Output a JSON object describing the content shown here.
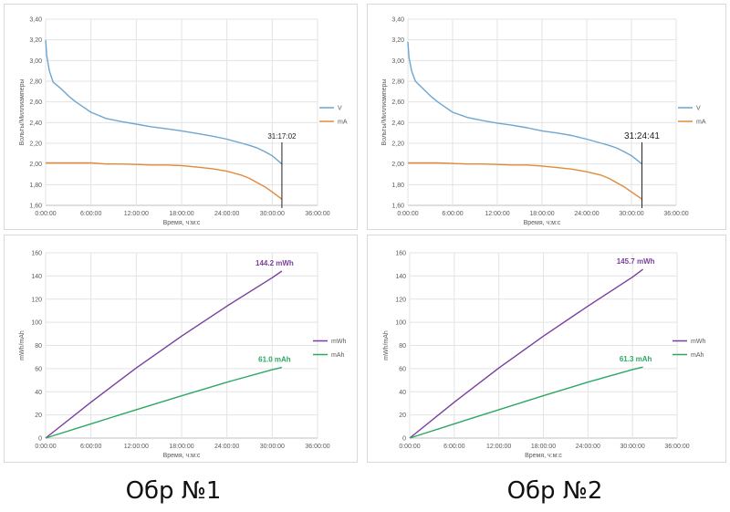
{
  "captions": [
    "Обр №1",
    "Обр №2"
  ],
  "chart_data": [
    {
      "type": "line",
      "panel": "top-left",
      "xlabel": "Время, ч:м:с",
      "ylabel": "Вольты/Миллиамперы",
      "xlim": [
        0,
        36
      ],
      "ylim": [
        1.6,
        3.4
      ],
      "xticks": [
        "0:00:00",
        "6:00:00",
        "12:00:00",
        "18:00:00",
        "24:00:00",
        "30:00:00",
        "36:00:00"
      ],
      "yticks": [
        "1,60",
        "1,80",
        "2,00",
        "2,20",
        "2,40",
        "2,60",
        "2,80",
        "3,00",
        "3,20",
        "3,40"
      ],
      "grid": true,
      "legend": "right",
      "series": [
        {
          "name": "V",
          "color": "#6ea6cf",
          "x": [
            0,
            0.15,
            0.5,
            1,
            2,
            3,
            4,
            5,
            6,
            8,
            10,
            12,
            14,
            16,
            18,
            20,
            22,
            24,
            26,
            27,
            28,
            29,
            30,
            31.28
          ],
          "y": [
            3.2,
            3.05,
            2.9,
            2.79,
            2.73,
            2.66,
            2.6,
            2.55,
            2.5,
            2.44,
            2.41,
            2.385,
            2.36,
            2.34,
            2.32,
            2.295,
            2.27,
            2.24,
            2.2,
            2.18,
            2.155,
            2.12,
            2.08,
            2.0
          ]
        },
        {
          "name": "mA",
          "color": "#e08a3a",
          "x": [
            0,
            2,
            4,
            6,
            8,
            10,
            12,
            14,
            16,
            18,
            20,
            22,
            24,
            26,
            27,
            28,
            29,
            30,
            31.28
          ],
          "y": [
            2.01,
            2.01,
            2.01,
            2.01,
            2.0,
            2.0,
            1.995,
            1.99,
            1.99,
            1.985,
            1.97,
            1.955,
            1.93,
            1.89,
            1.86,
            1.82,
            1.78,
            1.73,
            1.66
          ]
        }
      ],
      "annotation": {
        "text": "31:17:02",
        "x": 31.28
      }
    },
    {
      "type": "line",
      "panel": "top-right",
      "xlabel": "Время, ч:м:с",
      "ylabel": "Вольты/Миллиамперы",
      "xlim": [
        0,
        36
      ],
      "ylim": [
        1.6,
        3.4
      ],
      "xticks": [
        "0:00:00",
        "6:00:00",
        "12:00:00",
        "18:00:00",
        "24:00:00",
        "30:00:00",
        "36:00:00"
      ],
      "yticks": [
        "1,60",
        "1,80",
        "2,00",
        "2,20",
        "2,40",
        "2,60",
        "2,80",
        "3,00",
        "3,20",
        "3,40"
      ],
      "grid": true,
      "legend": "right",
      "series": [
        {
          "name": "V",
          "color": "#6ea6cf",
          "x": [
            0,
            0.15,
            0.5,
            1,
            2,
            3,
            4,
            5,
            6,
            8,
            10,
            12,
            14,
            16,
            18,
            20,
            22,
            24,
            26,
            27,
            28,
            29,
            30,
            31.41
          ],
          "y": [
            3.18,
            3.03,
            2.9,
            2.8,
            2.73,
            2.66,
            2.6,
            2.55,
            2.5,
            2.45,
            2.42,
            2.395,
            2.375,
            2.35,
            2.32,
            2.3,
            2.275,
            2.24,
            2.2,
            2.18,
            2.155,
            2.12,
            2.08,
            2.0
          ]
        },
        {
          "name": "mA",
          "color": "#e08a3a",
          "x": [
            0,
            2,
            4,
            6,
            8,
            10,
            12,
            14,
            16,
            18,
            20,
            22,
            24,
            26,
            27,
            28,
            29,
            30,
            31.41
          ],
          "y": [
            2.01,
            2.01,
            2.01,
            2.005,
            2.0,
            2.0,
            1.995,
            1.99,
            1.99,
            1.98,
            1.965,
            1.95,
            1.925,
            1.89,
            1.86,
            1.82,
            1.78,
            1.73,
            1.66
          ]
        }
      ],
      "annotation": {
        "text": "31:24:41",
        "x": 31.41
      }
    },
    {
      "type": "line",
      "panel": "bottom-left",
      "xlabel": "Время, ч:м:с",
      "ylabel": "mWh/mAh",
      "xlim": [
        0,
        36
      ],
      "ylim": [
        0,
        160
      ],
      "xticks": [
        "0:00:00",
        "6:00:00",
        "12:00:00",
        "18:00:00",
        "24:00:00",
        "30:00:00",
        "36:00:00"
      ],
      "yticks": [
        "0",
        "20",
        "40",
        "60",
        "80",
        "100",
        "120",
        "140",
        "160"
      ],
      "grid": true,
      "legend": "right",
      "series": [
        {
          "name": "mWh",
          "color": "#7a3f9e",
          "x": [
            0,
            6,
            12,
            18,
            24,
            30,
            31.28
          ],
          "y": [
            0,
            31,
            60.5,
            88,
            114,
            138.5,
            144.2
          ],
          "label": "144.2 mWh"
        },
        {
          "name": "mAh",
          "color": "#2ca863",
          "x": [
            0,
            6,
            12,
            18,
            24,
            30,
            31.28
          ],
          "y": [
            0,
            12.3,
            24.5,
            36.5,
            48.2,
            59,
            61.0
          ],
          "label": "61.0 mAh"
        }
      ]
    },
    {
      "type": "line",
      "panel": "bottom-right",
      "xlabel": "Время, ч:м:с",
      "ylabel": "mWh/mAh",
      "xlim": [
        0,
        36
      ],
      "ylim": [
        0,
        160
      ],
      "xticks": [
        "0:00:00",
        "6:00:00",
        "12:00:00",
        "18:00:00",
        "24:00:00",
        "30:00:00",
        "36:00:00"
      ],
      "yticks": [
        "0",
        "20",
        "40",
        "60",
        "80",
        "100",
        "120",
        "140",
        "160"
      ],
      "grid": true,
      "legend": "right",
      "series": [
        {
          "name": "mWh",
          "color": "#7a3f9e",
          "x": [
            0,
            6,
            12,
            18,
            24,
            30,
            31.41
          ],
          "y": [
            0,
            31,
            60.5,
            88,
            114,
            139,
            145.7
          ],
          "label": "145.7 mWh"
        },
        {
          "name": "mAh",
          "color": "#2ca863",
          "x": [
            0,
            6,
            12,
            18,
            24,
            30,
            31.41
          ],
          "y": [
            0,
            12.3,
            24.5,
            36.6,
            48.3,
            59.2,
            61.3
          ],
          "label": "61.3 mAh"
        }
      ]
    }
  ]
}
